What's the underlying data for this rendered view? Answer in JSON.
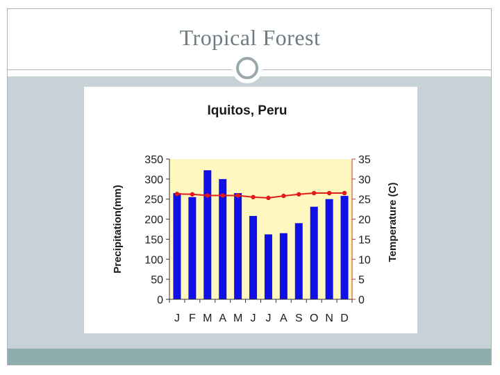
{
  "slide": {
    "title": "Tropical Forest"
  },
  "colors": {
    "frame": "#a9b4b8",
    "content_band": "#c7d2d6",
    "bottom_strip": "#8fadad",
    "plot_background": "#fff7c0",
    "bars": "#1010e6",
    "temperature_line": "#e41b1b",
    "title_text": "#6e7b80"
  },
  "chart_data": {
    "type": "bar",
    "title": "Iquitos, Peru",
    "categories": [
      "J",
      "F",
      "M",
      "A",
      "M",
      "J",
      "J",
      "A",
      "S",
      "O",
      "N",
      "D"
    ],
    "xlabel": "",
    "ylabel": "Precipitation(mm)",
    "y2label": "Temperature (C)",
    "ylim": [
      0,
      350
    ],
    "y2lim": [
      0,
      35
    ],
    "yticks": [
      "350",
      "300",
      "250",
      "200",
      "150",
      "100",
      "50",
      "0"
    ],
    "y2ticks": [
      "35",
      "30",
      "25",
      "20",
      "15",
      "10",
      "5",
      "0"
    ],
    "series": [
      {
        "type": "bar",
        "axis": "left",
        "values": [
          265,
          255,
          322,
          300,
          265,
          208,
          162,
          165,
          190,
          231,
          250,
          258
        ]
      },
      {
        "type": "line",
        "axis": "right",
        "values": [
          26.3,
          26.2,
          25.9,
          25.9,
          25.9,
          25.5,
          25.3,
          25.8,
          26.2,
          26.5,
          26.5,
          26.5
        ]
      }
    ],
    "grid": false,
    "legend": "none"
  }
}
